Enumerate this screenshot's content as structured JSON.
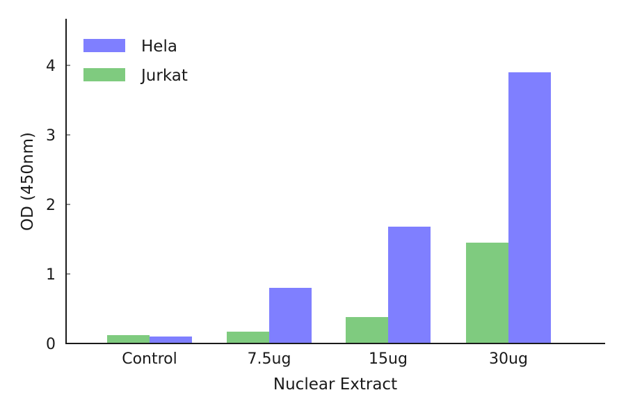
{
  "chart_data": {
    "type": "bar",
    "title": "",
    "xlabel": "Nuclear Extract",
    "ylabel": "OD (450nm)",
    "categories": [
      "Control",
      "7.5ug",
      "15ug",
      "30ug"
    ],
    "series": [
      {
        "name": "Jurkat",
        "color": "#7fcb7f",
        "values": [
          0.12,
          0.17,
          0.38,
          1.45
        ]
      },
      {
        "name": "Hela",
        "color": "#7f7fff",
        "values": [
          0.1,
          0.8,
          1.68,
          3.9
        ]
      }
    ],
    "legend_order": [
      "Hela",
      "Jurkat"
    ],
    "yticks": [
      0,
      1,
      2,
      3,
      4
    ],
    "ylim": [
      0,
      4.67
    ],
    "grid": false,
    "legend_position": "upper left"
  },
  "colors": {
    "hela": "#7f7fff",
    "jurkat": "#7fcb7f",
    "axis": "#1a1a1a"
  }
}
